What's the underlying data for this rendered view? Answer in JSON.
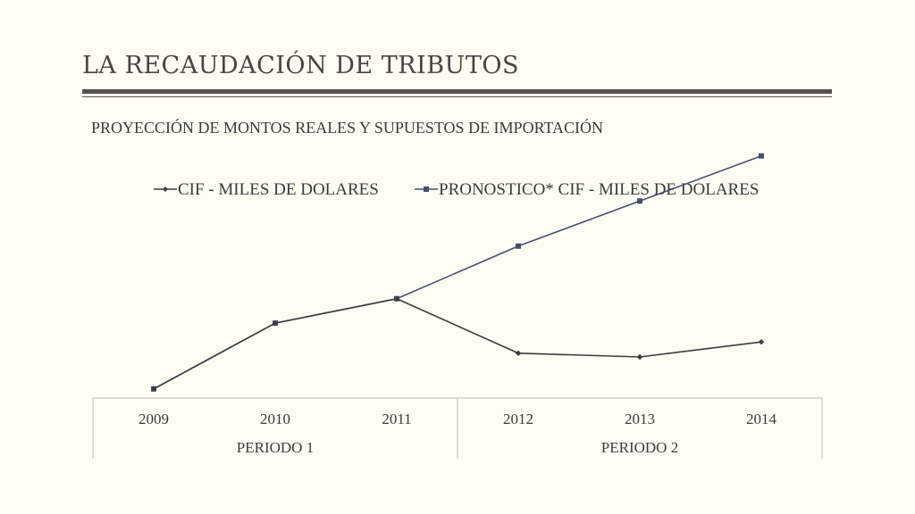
{
  "slide": {
    "title": "LA RECAUDACIÓN DE TRIBUTOS"
  },
  "colors": {
    "background": "#fdfdf3",
    "rule": "#55504d",
    "series_actual": "#3d3d3d",
    "series_forecast": "#45506e"
  },
  "chart_data": {
    "type": "line",
    "title": "PROYECCIÓN DE MONTOS REALES Y SUPUESTOS DE IMPORTACIÓN",
    "categories": [
      "2009",
      "2010",
      "2011",
      "2012",
      "2013",
      "2014"
    ],
    "groups": [
      {
        "label": "PERIODO 1",
        "categories": [
          "2009",
          "2010",
          "2011"
        ]
      },
      {
        "label": "PERIODO 2",
        "categories": [
          "2012",
          "2013",
          "2014"
        ]
      }
    ],
    "series": [
      {
        "name": "CIF - MILES DE DOLARES",
        "marker": "diamond",
        "values": [
          1000,
          1350,
          1480,
          1190,
          1170,
          1250
        ]
      },
      {
        "name": "PRONOSTICO* CIF - MILES DE DOLARES",
        "marker": "square",
        "values": [
          1000,
          1350,
          1480,
          1760,
          2000,
          2240
        ]
      }
    ],
    "ylim": [
      600,
      2500
    ],
    "grid": false,
    "legend_position": "top",
    "y_axis_visible": false
  }
}
